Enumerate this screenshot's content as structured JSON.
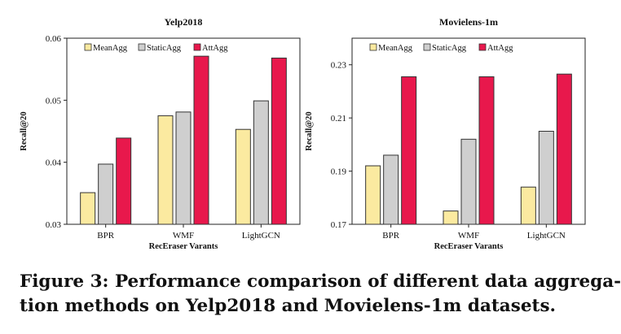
{
  "colors": {
    "MeanAgg": "#fbeaa0",
    "StaticAgg": "#cfcfcf",
    "AttAgg": "#e8184c"
  },
  "chart_data": [
    {
      "type": "bar",
      "title": "Yelp2018",
      "xlabel": "RecEraser Varants",
      "ylabel": "Recall@20",
      "categories": [
        "BPR",
        "WMF",
        "LightGCN"
      ],
      "ylim": [
        0.03,
        0.06
      ],
      "yticks": [
        0.03,
        0.04,
        0.05,
        0.06
      ],
      "ytick_labels": [
        "0.03",
        "0.04",
        "0.05",
        "0.06"
      ],
      "legend": "top-left",
      "series": [
        {
          "name": "MeanAgg",
          "values": [
            0.0351,
            0.0475,
            0.0453
          ]
        },
        {
          "name": "StaticAgg",
          "values": [
            0.0397,
            0.0481,
            0.0499
          ]
        },
        {
          "name": "AttAgg",
          "values": [
            0.0439,
            0.0571,
            0.0568
          ]
        }
      ]
    },
    {
      "type": "bar",
      "title": "Movielens-1m",
      "xlabel": "RecEraser Varants",
      "ylabel": "Recall@20",
      "categories": [
        "BPR",
        "WMF",
        "LightGCN"
      ],
      "ylim": [
        0.17,
        0.24
      ],
      "yticks": [
        0.17,
        0.19,
        0.21,
        0.23
      ],
      "ytick_labels": [
        "0.17",
        "0.19",
        "0.21",
        "0.23"
      ],
      "legend": "top-left",
      "series": [
        {
          "name": "MeanAgg",
          "values": [
            0.192,
            0.175,
            0.184
          ]
        },
        {
          "name": "StaticAgg",
          "values": [
            0.196,
            0.202,
            0.205
          ]
        },
        {
          "name": "AttAgg",
          "values": [
            0.2255,
            0.2255,
            0.2265
          ]
        }
      ]
    }
  ],
  "caption": {
    "line1": "Figure 3: Performance comparison of different data aggrega-",
    "line2": "tion methods on Yelp2018 and Movielens-1m datasets."
  }
}
